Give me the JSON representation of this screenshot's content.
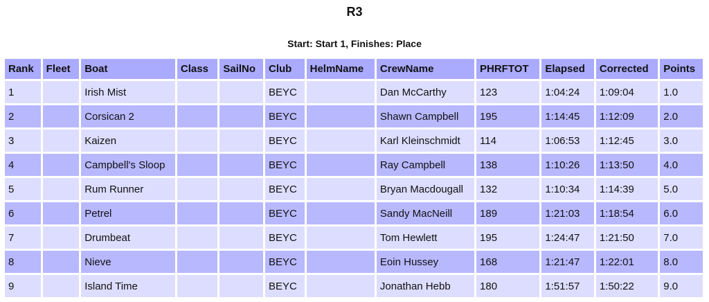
{
  "title": "R3",
  "subtitle": "Start: Start 1, Finishes: Place",
  "columns": [
    "Rank",
    "Fleet",
    "Boat",
    "Class",
    "SailNo",
    "Club",
    "HelmName",
    "CrewName",
    "PHRFTOT",
    "Elapsed",
    "Corrected",
    "Points"
  ],
  "rows": [
    [
      "1",
      "",
      "Irish Mist",
      "",
      "",
      "BEYC",
      "",
      "Dan McCarthy",
      "123",
      "1:04:24",
      "1:09:04",
      "1.0"
    ],
    [
      "2",
      "",
      "Corsican 2",
      "",
      "",
      "BEYC",
      "",
      "Shawn Campbell",
      "195",
      "1:14:45",
      "1:12:09",
      "2.0"
    ],
    [
      "3",
      "",
      "Kaizen",
      "",
      "",
      "BEYC",
      "",
      "Karl Kleinschmidt",
      "114",
      "1:06:53",
      "1:12:45",
      "3.0"
    ],
    [
      "4",
      "",
      "Campbell's Sloop",
      "",
      "",
      "BEYC",
      "",
      "Ray Campbell",
      "138",
      "1:10:26",
      "1:13:50",
      "4.0"
    ],
    [
      "5",
      "",
      "Rum Runner",
      "",
      "",
      "BEYC",
      "",
      "Bryan Macdougall",
      "132",
      "1:10:34",
      "1:14:39",
      "5.0"
    ],
    [
      "6",
      "",
      "Petrel",
      "",
      "",
      "BEYC",
      "",
      "Sandy MacNeill",
      "189",
      "1:21:03",
      "1:18:54",
      "6.0"
    ],
    [
      "7",
      "",
      "Drumbeat",
      "",
      "",
      "BEYC",
      "",
      "Tom Hewlett",
      "195",
      "1:24:47",
      "1:21:50",
      "7.0"
    ],
    [
      "8",
      "",
      "Nieve",
      "",
      "",
      "BEYC",
      "",
      "Eoin Hussey",
      "168",
      "1:21:47",
      "1:22:01",
      "8.0"
    ],
    [
      "9",
      "",
      "Island Time",
      "",
      "",
      "BEYC",
      "",
      "Jonathan Hebb",
      "180",
      "1:51:57",
      "1:50:22",
      "9.0"
    ]
  ],
  "colors": {
    "header": "#aaaaff",
    "row_odd": "#ddddff",
    "row_even": "#b8b8ff"
  }
}
